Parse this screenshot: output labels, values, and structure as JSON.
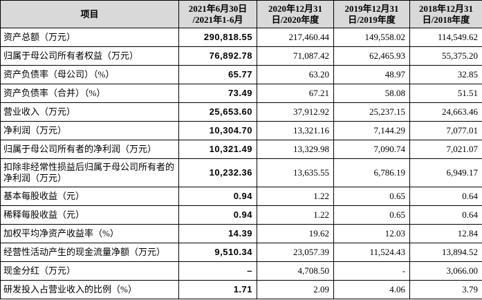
{
  "table": {
    "header": [
      [
        "项目"
      ],
      [
        "2021年6月30日",
        "/2021年1-6月"
      ],
      [
        "2020年12月31",
        "日/2020年度"
      ],
      [
        "2019年12月31",
        "日/2019年度"
      ],
      [
        "2018年12月31",
        "日/2018年度"
      ]
    ],
    "rows": [
      [
        "资产总额（万元）",
        "290,818.55",
        "217,460.44",
        "149,558.02",
        "114,549.62"
      ],
      [
        "归属于母公司所有者权益（万元）",
        "76,892.78",
        "71,087.42",
        "62,465.93",
        "55,375.20"
      ],
      [
        "资产负债率（母公司）（%）",
        "65.77",
        "63.20",
        "48.97",
        "32.85"
      ],
      [
        "资产负债率（合并）（%）",
        "73.49",
        "67.21",
        "58.08",
        "51.51"
      ],
      [
        "营业收入（万元）",
        "25,653.60",
        "37,912.92",
        "25,237.15",
        "24,663.46"
      ],
      [
        "净利润（万元）",
        "10,304.70",
        "13,321.16",
        "7,144.29",
        "7,077.01"
      ],
      [
        "归属于母公司所有者的净利润（万元）",
        "10,321.49",
        "13,329.98",
        "7,090.74",
        "7,021.07"
      ],
      [
        "扣除非经常性损益后归属于母公司所有者的净利润（万元）",
        "10,232.36",
        "13,635.55",
        "6,786.19",
        "6,949.17"
      ],
      [
        "基本每股收益（元）",
        "0.94",
        "1.22",
        "0.65",
        "0.64"
      ],
      [
        "稀释每股收益（元）",
        "0.94",
        "1.22",
        "0.65",
        "0.64"
      ],
      [
        "加权平均净资产收益率（%）",
        "14.39",
        "19.62",
        "12.03",
        "12.84"
      ],
      [
        "经营性活动产生的现金流量净额（万元）",
        "9,510.34",
        "23,057.39",
        "11,524.43",
        "13,894.52"
      ],
      [
        "现金分红（万元）",
        "–",
        "4,708.50",
        "-",
        "3,066.00"
      ],
      [
        "研发投入占营业收入的比例（%）",
        "1.71",
        "2.09",
        "4.06",
        "3.79"
      ]
    ]
  }
}
